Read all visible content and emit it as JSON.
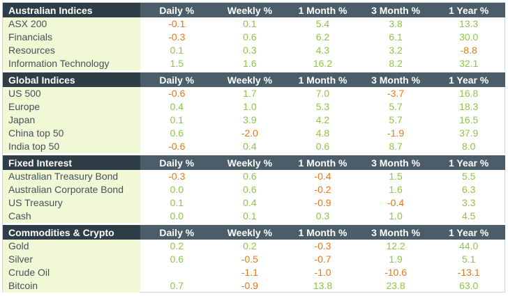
{
  "colors": {
    "header_dark": "#2f3e46",
    "header": "#4a5d68",
    "positive": "#8dc44a",
    "negative": "#e67817",
    "name_bg": "#f0f8d6"
  },
  "columns": [
    "Daily %",
    "Weekly %",
    "1 Month %",
    "3 Month %",
    "1 Year %"
  ],
  "sections": [
    {
      "title": "Australian Indices",
      "rows": [
        {
          "name": "ASX 200",
          "values": [
            "-0.1",
            "0.1",
            "5.4",
            "3.8",
            "13.3"
          ]
        },
        {
          "name": "Financials",
          "values": [
            "-0.3",
            "0.6",
            "6.2",
            "6.1",
            "30.0"
          ]
        },
        {
          "name": "Resources",
          "values": [
            "0.1",
            "0.3",
            "4.3",
            "3.2",
            "-8.8"
          ]
        },
        {
          "name": "Information Technology",
          "values": [
            "1.5",
            "1.6",
            "16.2",
            "8.2",
            "32.1"
          ]
        }
      ]
    },
    {
      "title": "Global Indices",
      "rows": [
        {
          "name": "US 500",
          "values": [
            "-0.6",
            "1.7",
            "7.0",
            "-3.7",
            "16.8"
          ]
        },
        {
          "name": "Europe",
          "values": [
            "0.4",
            "1.0",
            "5.3",
            "5.7",
            "18.3"
          ]
        },
        {
          "name": "Japan",
          "values": [
            "0.1",
            "3.9",
            "4.2",
            "5.7",
            "16.5"
          ]
        },
        {
          "name": "China top 50",
          "values": [
            "0.6",
            "-2.0",
            "4.8",
            "-1.9",
            "37.9"
          ]
        },
        {
          "name": "India top 50",
          "values": [
            "-0.6",
            "0.4",
            "0.6",
            "8.7",
            "8.0"
          ]
        }
      ]
    },
    {
      "title": "Fixed Interest",
      "rows": [
        {
          "name": "Australian Treasury Bond",
          "values": [
            "-0.3",
            "0.6",
            "-0.4",
            "1.5",
            "5.5"
          ]
        },
        {
          "name": "Australian Corporate Bond",
          "values": [
            "0.0",
            "0.6",
            "-0.2",
            "1.6",
            "6.3"
          ]
        },
        {
          "name": "US Treasury",
          "values": [
            "0.1",
            "0.4",
            "-0.9",
            "-0.4",
            "3.3"
          ]
        },
        {
          "name": "Cash",
          "values": [
            "0.0",
            "0.1",
            "0.3",
            "1.0",
            "4.5"
          ]
        }
      ]
    },
    {
      "title": "Commodities & Crypto",
      "rows": [
        {
          "name": "Gold",
          "values": [
            "0.2",
            "0.2",
            "-0.3",
            "12.2",
            "44.0"
          ]
        },
        {
          "name": "Silver",
          "values": [
            "0.6",
            "-0.5",
            "-0.7",
            "1.9",
            "5.1"
          ]
        },
        {
          "name": "Crude Oil",
          "values": [
            "",
            "-1.1",
            "-1.0",
            "-10.6",
            "-13.1"
          ]
        },
        {
          "name": "Bitcoin",
          "values": [
            "0.7",
            "-0.9",
            "13.8",
            "23.8",
            "63.0"
          ]
        }
      ]
    }
  ]
}
